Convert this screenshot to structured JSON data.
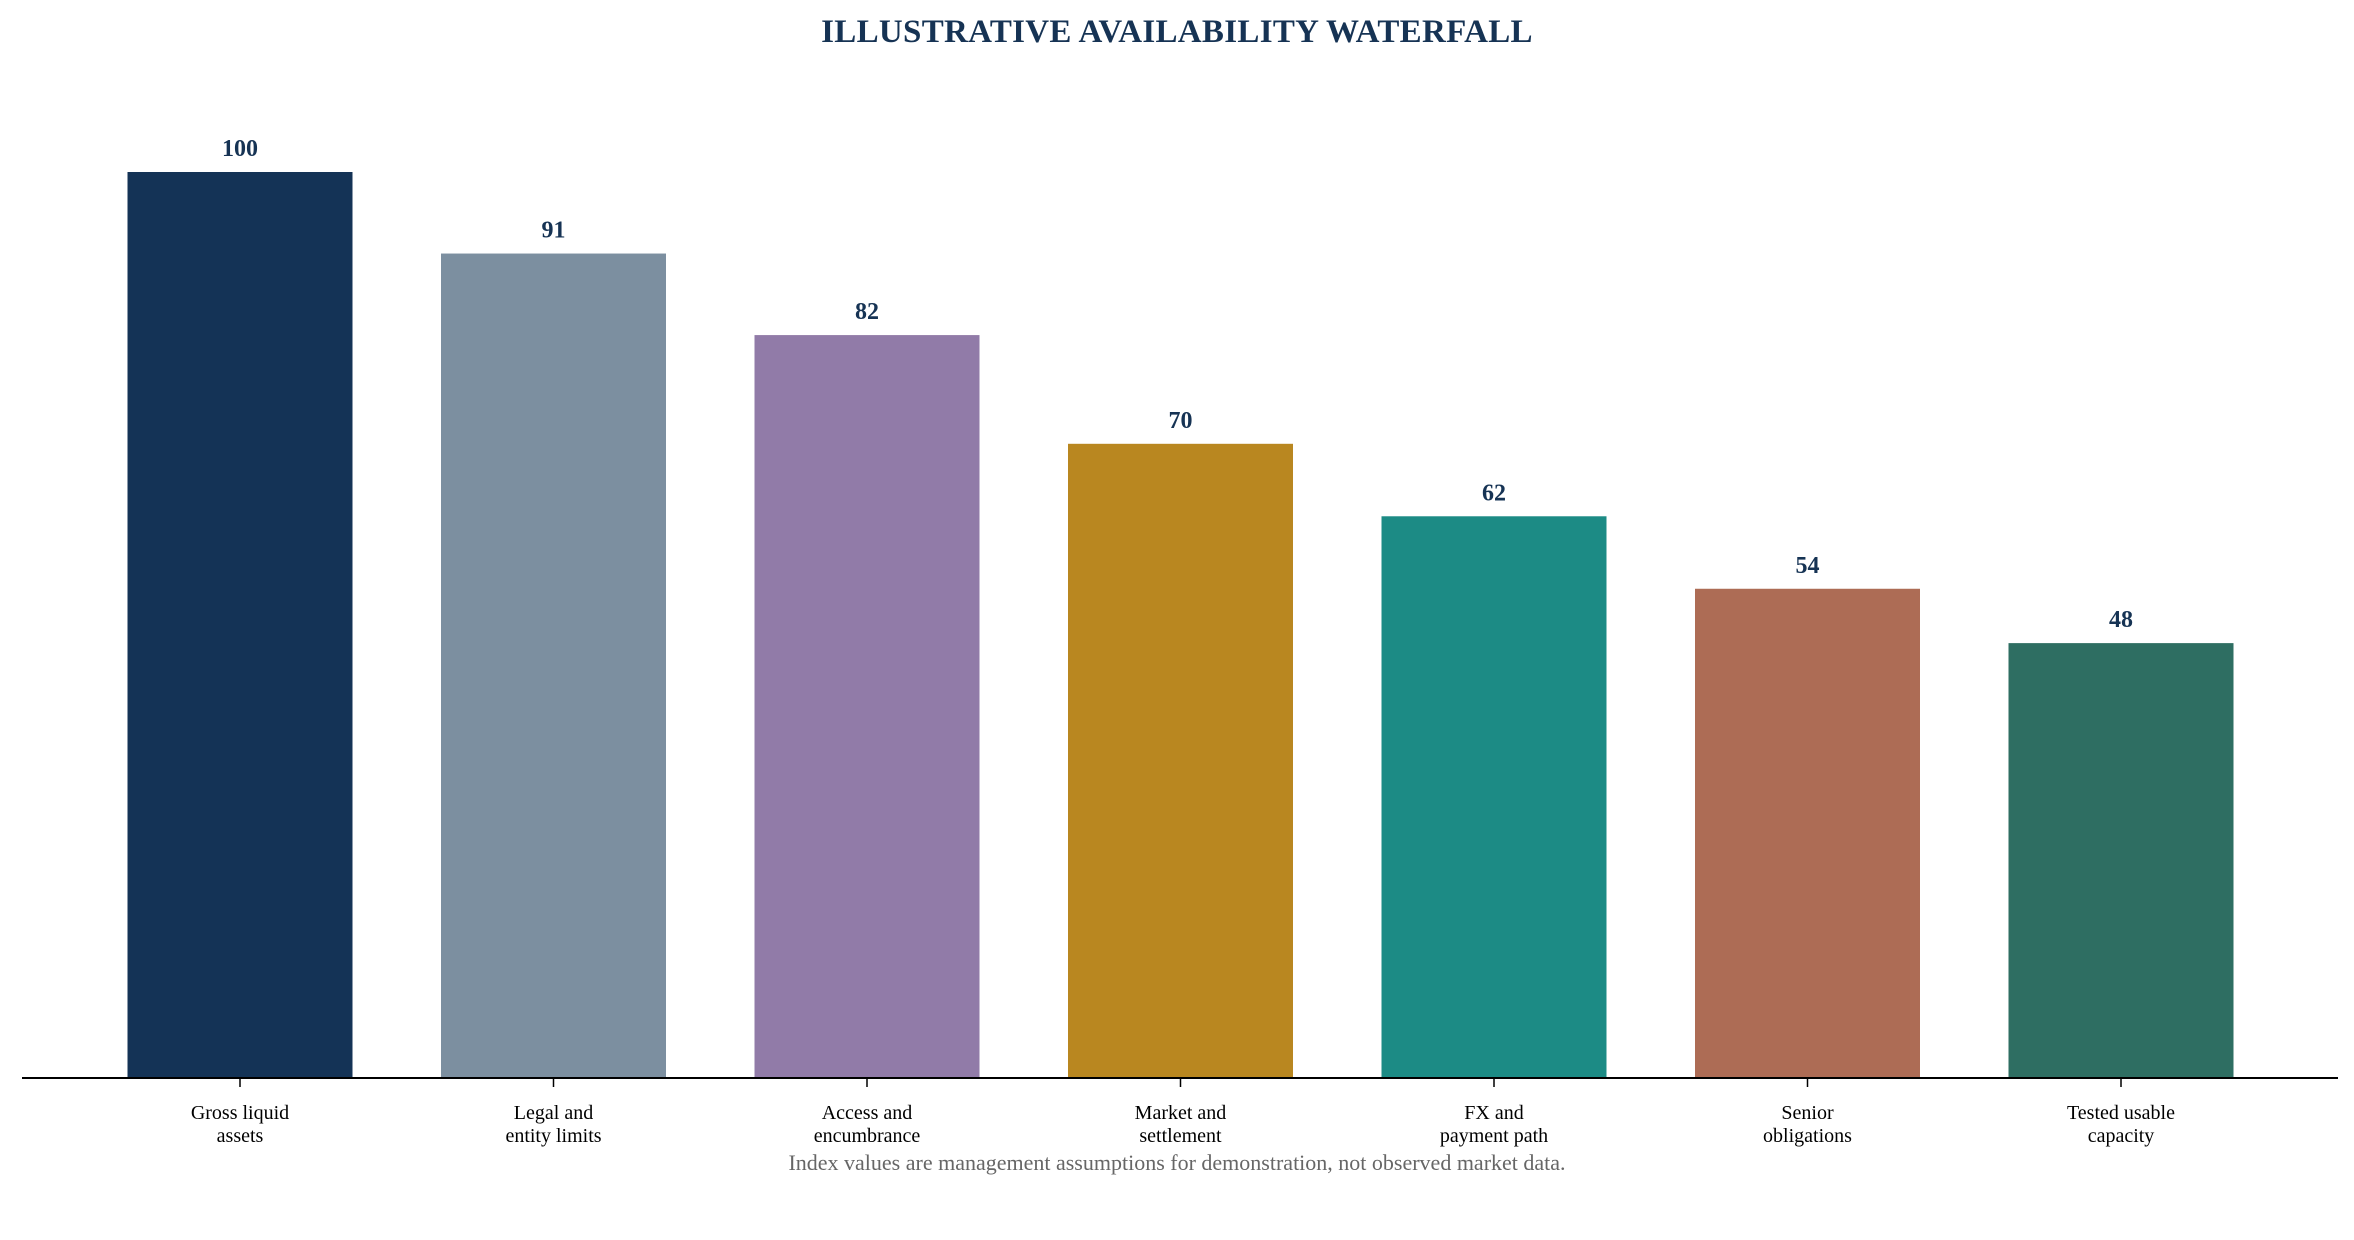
{
  "chart_data": {
    "type": "bar",
    "title": "ILLUSTRATIVE AVAILABILITY WATERFALL",
    "xlabel": "",
    "ylabel": "",
    "categories": [
      [
        "Gross liquid",
        "assets"
      ],
      [
        "Legal and",
        "entity limits"
      ],
      [
        "Access and",
        "encumbrance"
      ],
      [
        "Market and",
        "settlement"
      ],
      [
        "FX and",
        "payment path"
      ],
      [
        "Senior",
        "obligations"
      ],
      [
        "Tested usable",
        "capacity"
      ]
    ],
    "values": [
      100,
      91,
      82,
      70,
      62,
      54,
      48
    ],
    "data_labels": [
      "100",
      "91",
      "82",
      "70",
      "62",
      "54",
      "48"
    ],
    "colors": [
      "#143356",
      "#7c8fa0",
      "#917ba8",
      "#b98720",
      "#1c8b85",
      "#ad6c55",
      "#2e6e62"
    ],
    "ylim": [
      0,
      100
    ],
    "grid": false,
    "legend": "none",
    "footnote": "Index values are management assumptions for demonstration, not observed market data."
  }
}
